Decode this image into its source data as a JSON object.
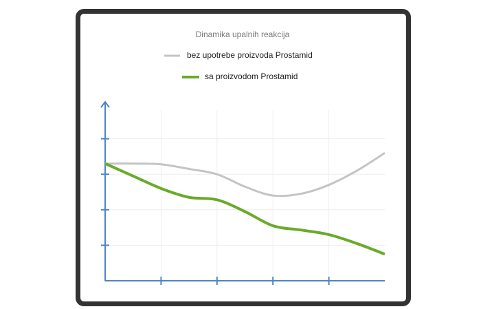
{
  "chart_data": {
    "type": "line",
    "title": "Dinamika upalnih reakcija",
    "x": [
      0,
      0.5,
      1,
      1.5,
      2,
      2.5,
      3,
      3.5,
      4,
      4.5,
      5
    ],
    "series": [
      {
        "name": "bez upotrebe proizvoda Prostamid",
        "color": "#c4c4c4",
        "values": [
          3.3,
          3.3,
          3.28,
          3.15,
          3.0,
          2.65,
          2.4,
          2.45,
          2.7,
          3.1,
          3.6
        ]
      },
      {
        "name": "sa proizvodom Prostamid",
        "color": "#6aaa2a",
        "values": [
          3.3,
          2.95,
          2.6,
          2.35,
          2.28,
          1.95,
          1.55,
          1.43,
          1.3,
          1.05,
          0.75
        ]
      }
    ],
    "xlim": [
      0,
      5
    ],
    "xticks": [
      1,
      2,
      3,
      4
    ],
    "ylim": [
      0,
      5
    ],
    "yticks": [
      1,
      2,
      3,
      4
    ],
    "grid": true,
    "smooth": true,
    "axis_color": "#4a86c8"
  }
}
